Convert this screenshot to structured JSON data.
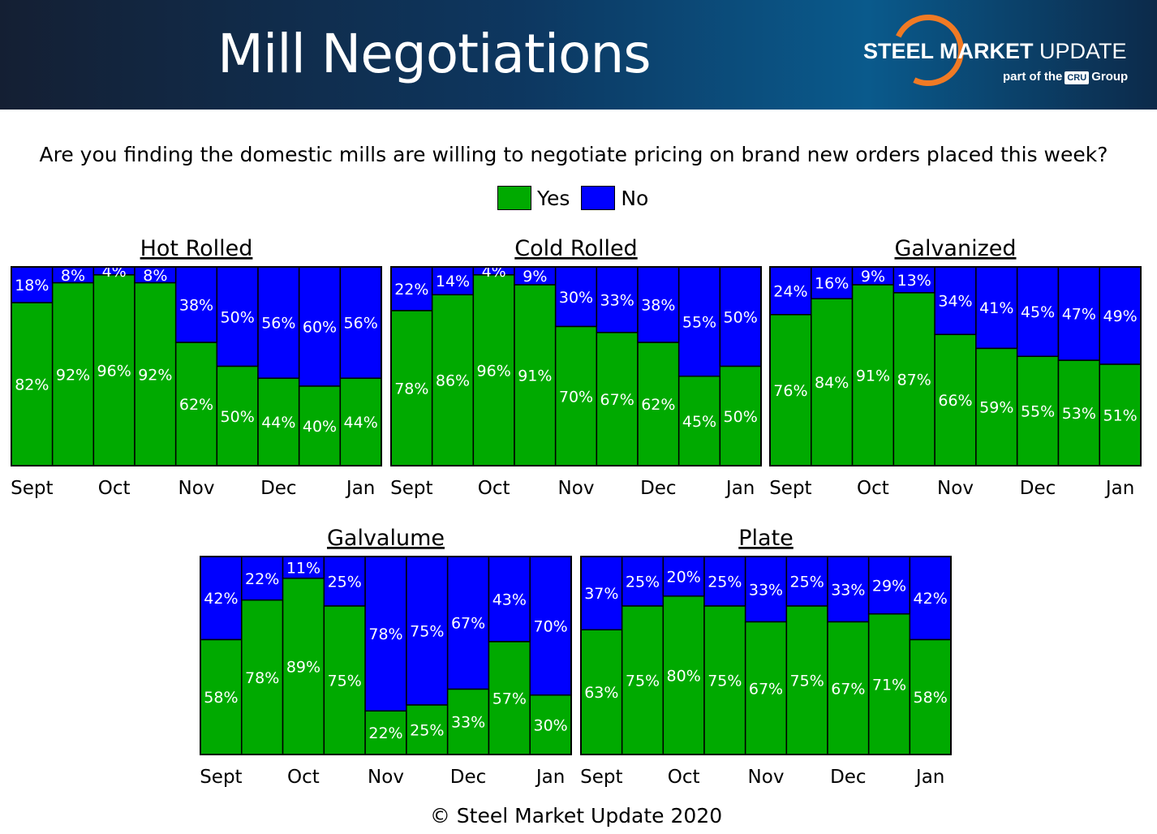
{
  "header": {
    "title": "Mill Negotiations",
    "logo_text": "STEEL MARKET UPDATE",
    "logo_sub": "part of the CRU Group"
  },
  "question": "Are you finding the domestic mills are willing to negotiate pricing on brand new orders placed this week?",
  "legend": [
    {
      "label": "Yes",
      "color": "#00aa00"
    },
    {
      "label": "No",
      "color": "#0000ff"
    }
  ],
  "copyright": "© Steel Market Update 2020",
  "chart_data": [
    {
      "type": "bar",
      "stacked": true,
      "title": "Hot Rolled",
      "x_tick_labels": [
        "Sept",
        "Oct",
        "Nov",
        "Dec",
        "Jan"
      ],
      "series": [
        {
          "name": "Yes",
          "values": [
            82,
            92,
            96,
            92,
            62,
            50,
            44,
            40,
            44
          ]
        },
        {
          "name": "No",
          "values": [
            18,
            8,
            4,
            8,
            38,
            50,
            56,
            60,
            56
          ]
        }
      ],
      "ylim": [
        0,
        100
      ]
    },
    {
      "type": "bar",
      "stacked": true,
      "title": "Cold Rolled",
      "x_tick_labels": [
        "Sept",
        "Oct",
        "Nov",
        "Dec",
        "Jan"
      ],
      "series": [
        {
          "name": "Yes",
          "values": [
            78,
            86,
            96,
            91,
            70,
            67,
            62,
            45,
            50
          ]
        },
        {
          "name": "No",
          "values": [
            22,
            14,
            4,
            9,
            30,
            33,
            38,
            55,
            50
          ]
        }
      ],
      "ylim": [
        0,
        100
      ]
    },
    {
      "type": "bar",
      "stacked": true,
      "title": "Galvanized",
      "x_tick_labels": [
        "Sept",
        "Oct",
        "Nov",
        "Dec",
        "Jan"
      ],
      "series": [
        {
          "name": "Yes",
          "values": [
            76,
            84,
            91,
            87,
            66,
            59,
            55,
            53,
            51
          ]
        },
        {
          "name": "No",
          "values": [
            24,
            16,
            9,
            13,
            34,
            41,
            45,
            47,
            49
          ]
        }
      ],
      "ylim": [
        0,
        100
      ]
    },
    {
      "type": "bar",
      "stacked": true,
      "title": "Galvalume",
      "x_tick_labels": [
        "Sept",
        "Oct",
        "Nov",
        "Dec",
        "Jan"
      ],
      "series": [
        {
          "name": "Yes",
          "values": [
            58,
            78,
            89,
            75,
            22,
            25,
            33,
            57,
            30
          ]
        },
        {
          "name": "No",
          "values": [
            42,
            22,
            11,
            25,
            78,
            75,
            67,
            43,
            70
          ]
        }
      ],
      "ylim": [
        0,
        100
      ]
    },
    {
      "type": "bar",
      "stacked": true,
      "title": "Plate",
      "x_tick_labels": [
        "Sept",
        "Oct",
        "Nov",
        "Dec",
        "Jan"
      ],
      "series": [
        {
          "name": "Yes",
          "values": [
            63,
            75,
            80,
            75,
            67,
            75,
            67,
            71,
            58
          ]
        },
        {
          "name": "No",
          "values": [
            37,
            25,
            20,
            25,
            33,
            25,
            33,
            29,
            42
          ]
        }
      ],
      "ylim": [
        0,
        100
      ]
    }
  ]
}
